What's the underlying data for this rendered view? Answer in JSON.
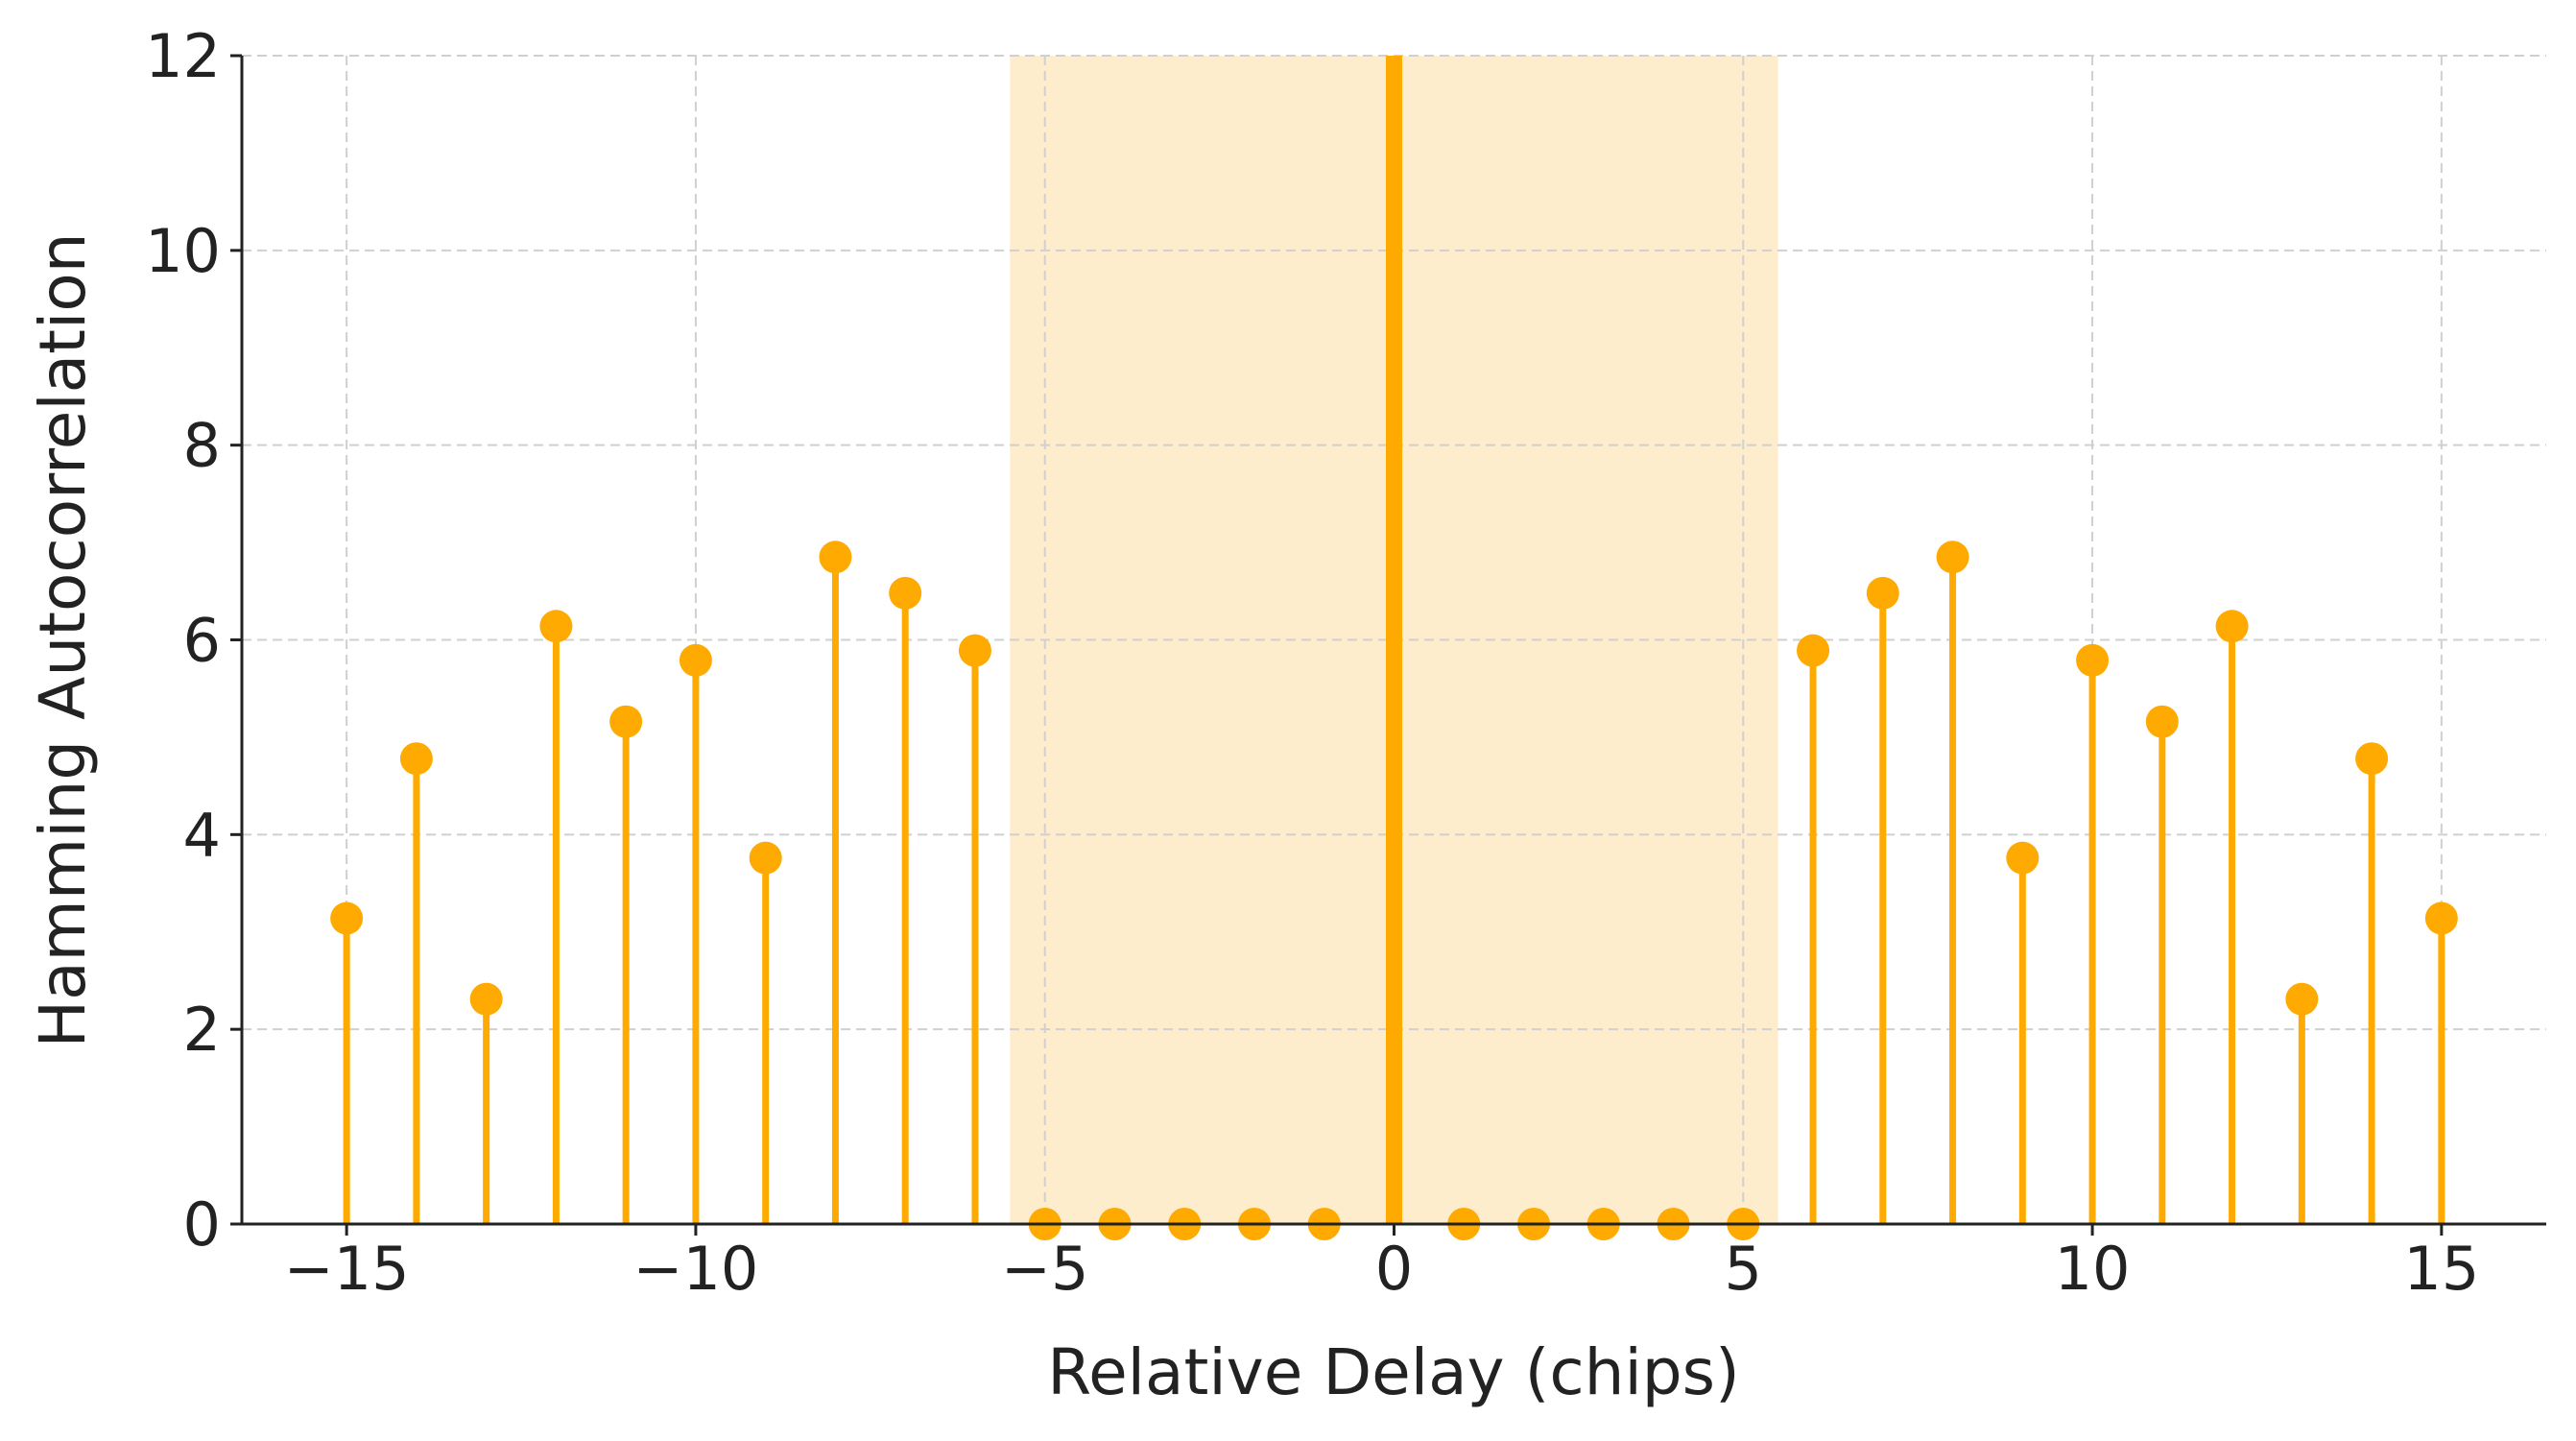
{
  "chart_data": {
    "type": "stem",
    "xlabel": "Relative Delay (chips)",
    "ylabel": "Hamming Autocorrelation",
    "x": [
      -15,
      -14,
      -13,
      -12,
      -11,
      -10,
      -9,
      -8,
      -7,
      -6,
      -5,
      -4,
      -3,
      -2,
      -1,
      0,
      1,
      2,
      3,
      4,
      5,
      6,
      7,
      8,
      9,
      10,
      11,
      12,
      13,
      14,
      15
    ],
    "values": [
      3.14,
      4.78,
      2.31,
      6.14,
      5.16,
      5.79,
      3.76,
      6.85,
      6.48,
      5.89,
      0,
      0,
      0,
      0,
      0,
      null,
      0,
      0,
      0,
      0,
      0,
      5.89,
      6.48,
      6.85,
      3.76,
      5.79,
      5.16,
      6.14,
      2.31,
      4.78,
      3.14
    ],
    "color": "#FFAA00",
    "reference_line_x": 0,
    "shaded_region": [
      -5.5,
      5.5
    ],
    "shade_color": "#FDEDCD",
    "xlim": [
      -16.5,
      16.5
    ],
    "ylim": [
      0,
      12
    ],
    "xticks": [
      {
        "value": -15,
        "label": "−15"
      },
      {
        "value": -10,
        "label": "−10"
      },
      {
        "value": -5,
        "label": "−5"
      },
      0,
      5,
      10,
      15
    ],
    "yticks": [
      0,
      2,
      4,
      6,
      8,
      10,
      12
    ],
    "grid": true
  }
}
